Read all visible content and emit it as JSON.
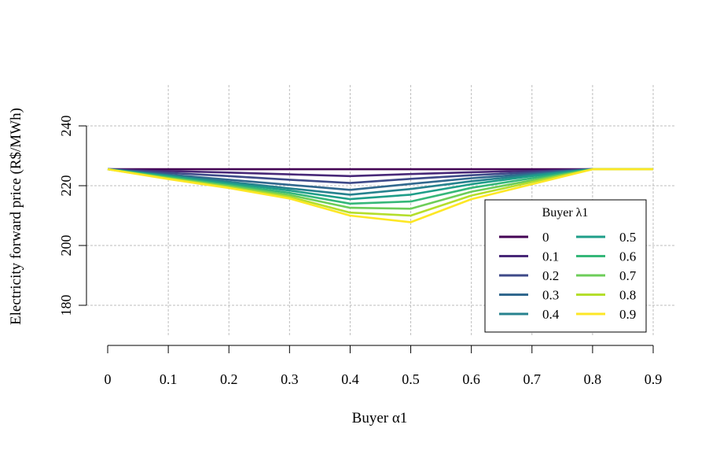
{
  "chart_data": {
    "type": "line",
    "title": "",
    "xlabel": "Buyer α1",
    "ylabel": "Electricity forward price (R$/MWh)",
    "xlim": [
      0,
      0.9
    ],
    "ylim": [
      170,
      250
    ],
    "x_ticks": [
      0,
      0.1,
      0.2,
      0.3,
      0.4,
      0.5,
      0.6,
      0.7,
      0.8,
      0.9
    ],
    "x_tick_labels": [
      "0",
      "0.1",
      "0.2",
      "0.3",
      "0.4",
      "0.5",
      "0.6",
      "0.7",
      "0.8",
      "0.9"
    ],
    "y_ticks": [
      180,
      200,
      220,
      240
    ],
    "y_tick_labels": [
      "180",
      "200",
      "220",
      "240"
    ],
    "grid": true,
    "legend": {
      "title": "Buyer λ1",
      "position": "right",
      "columns": 2
    },
    "x": [
      0,
      0.1,
      0.2,
      0.3,
      0.4,
      0.5,
      0.6,
      0.7,
      0.8,
      0.9
    ],
    "series": [
      {
        "name": "0",
        "color": "#440154",
        "values": [
          225.5,
          225.5,
          225.5,
          225.5,
          225.5,
          225.5,
          225.5,
          225.5,
          225.5,
          225.5
        ]
      },
      {
        "name": "0.1",
        "color": "#482878",
        "values": [
          225.5,
          224.9,
          224.4,
          223.8,
          223.2,
          223.9,
          224.5,
          225.0,
          225.5,
          225.5
        ]
      },
      {
        "name": "0.2",
        "color": "#3E4A89",
        "values": [
          225.5,
          224.3,
          223.2,
          222.0,
          220.9,
          222.3,
          223.5,
          224.5,
          225.5,
          225.5
        ]
      },
      {
        "name": "0.3",
        "color": "#31688E",
        "values": [
          225.5,
          223.7,
          222.0,
          220.3,
          218.6,
          220.6,
          222.5,
          224.0,
          225.5,
          225.5
        ]
      },
      {
        "name": "0.4",
        "color": "#26828E",
        "values": [
          225.5,
          223.4,
          221.3,
          219.1,
          217.0,
          218.9,
          221.5,
          223.6,
          225.5,
          225.5
        ]
      },
      {
        "name": "0.5",
        "color": "#1F9E89",
        "values": [
          225.5,
          223.2,
          220.8,
          218.4,
          215.5,
          217.0,
          220.5,
          223.2,
          225.5,
          225.5
        ]
      },
      {
        "name": "0.6",
        "color": "#35B779",
        "values": [
          225.5,
          222.9,
          220.3,
          217.6,
          214.0,
          214.7,
          219.3,
          222.5,
          225.5,
          225.5
        ]
      },
      {
        "name": "0.7",
        "color": "#6DCD59",
        "values": [
          225.5,
          222.6,
          219.9,
          216.9,
          212.6,
          212.3,
          218.0,
          221.8,
          225.5,
          225.5
        ]
      },
      {
        "name": "0.8",
        "color": "#B4DE2C",
        "values": [
          225.5,
          222.4,
          219.5,
          216.3,
          211.0,
          210.0,
          216.7,
          221.2,
          225.5,
          225.5
        ]
      },
      {
        "name": "0.9",
        "color": "#FDE725",
        "values": [
          225.5,
          222.2,
          219.2,
          215.7,
          210.0,
          207.8,
          215.5,
          220.5,
          225.5,
          225.5
        ]
      }
    ]
  }
}
